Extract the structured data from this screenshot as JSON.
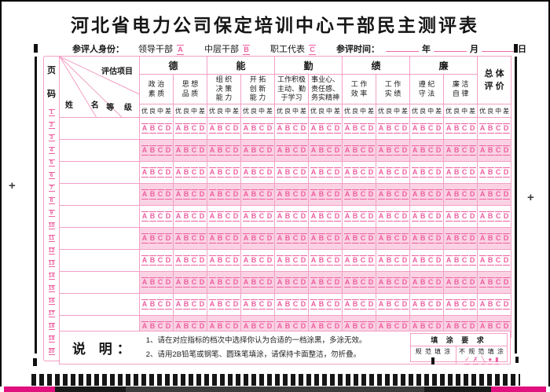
{
  "title": "河北省电力公司保定培训中心干部民主测评表",
  "identity_row": {
    "label": "参评人身份：",
    "options": [
      {
        "label": "领导干部",
        "bubble": "A"
      },
      {
        "label": "中层干部",
        "bubble": "B"
      },
      {
        "label": "职工代表",
        "bubble": "C"
      }
    ],
    "time_label": "参评时间：",
    "time_units": [
      "年",
      "月",
      "日"
    ]
  },
  "table": {
    "page_col": {
      "label_chars": [
        "页",
        "码"
      ],
      "numbers": [
        "1",
        "2",
        "3",
        "4",
        "5",
        "6",
        "7",
        "8",
        "9",
        "10",
        "11",
        "12",
        "13",
        "14",
        "15",
        "16",
        "17",
        "18",
        "19",
        "20"
      ]
    },
    "corner": {
      "top_label": "评估项目",
      "name_label": "姓  名",
      "grade_label": "等 级"
    },
    "groups": [
      {
        "label": "德"
      },
      {
        "label": "能"
      },
      {
        "label": "勤"
      },
      {
        "label": "绩"
      },
      {
        "label": "廉"
      }
    ],
    "overall_lines": [
      "总 体",
      "评 价"
    ],
    "criteria": [
      {
        "lines": [
          "政 治",
          "素 质"
        ]
      },
      {
        "lines": [
          "思 想",
          "品 质"
        ]
      },
      {
        "lines": [
          "组 织",
          "决 策",
          "能 力"
        ]
      },
      {
        "lines": [
          "开 拓",
          "创 新",
          "能 力"
        ]
      },
      {
        "lines": [
          "工作积极",
          "主动、勤",
          "于学习"
        ]
      },
      {
        "lines": [
          "事业心、",
          "责任感、",
          "务实精神"
        ]
      },
      {
        "lines": [
          "工 作",
          "效 率"
        ]
      },
      {
        "lines": [
          "工 作",
          "实 绩"
        ]
      },
      {
        "lines": [
          "遵 纪",
          "守 法"
        ]
      },
      {
        "lines": [
          "廉 洁",
          "自 律"
        ]
      }
    ],
    "grade_labels": [
      "优",
      "良",
      "中",
      "差"
    ],
    "bubble_letters": [
      "A",
      "B",
      "C",
      "D"
    ],
    "data_row_count": 10
  },
  "instructions": {
    "label": "说 明：",
    "items": [
      "1、请在对应指标的档次中选择你认为合适的一档涂黑，多涂无效。",
      "2、请用2B铅笔或钢笔、圆珠笔填涂，请保持卡面整洁，勿折叠。"
    ]
  },
  "fill_requirements": {
    "title": "填 涂 要 求",
    "standard_label": "规 范 填 涂",
    "nonstandard_label": "不 规 范 填 涂",
    "nonstandard_symbols": [
      "✓",
      "✗",
      "╲",
      "●",
      "▮"
    ]
  },
  "colors": {
    "accent_pink": "#ee5f9f",
    "border_pink": "#f2a0c5",
    "stripe_pink": "#fad2e4",
    "mark_black": "#111111",
    "edge_magenta": "#e0107e"
  }
}
